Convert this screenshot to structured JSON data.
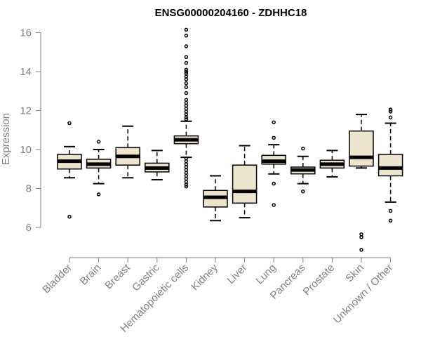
{
  "chart_data": {
    "type": "boxplot",
    "title": "ENSG00000204160 - ZDHHC18",
    "xlabel": "",
    "ylabel": "Expression",
    "ylim": [
      4.6,
      16.5
    ],
    "yticks": [
      6,
      8,
      10,
      12,
      14,
      16
    ],
    "ytick_labels": [
      "6",
      "8",
      "10",
      "12",
      "14",
      "16"
    ],
    "grid": false,
    "box_fill": "#ede4cd",
    "box_stroke": "#000000",
    "axis_color": "#808080",
    "categories": [
      "Bladder",
      "Brain",
      "Breast",
      "Gastric",
      "Hematopoietic cells",
      "Kidney",
      "Liver",
      "Lung",
      "Pancreas",
      "Prostate",
      "Skin",
      "Unknown / Other"
    ],
    "boxes": [
      {
        "name": "Bladder",
        "whisker_low": 8.55,
        "q1": 9.0,
        "median": 9.4,
        "q3": 9.75,
        "whisker_high": 10.15,
        "outliers": [
          11.35,
          6.55
        ]
      },
      {
        "name": "Brain",
        "whisker_low": 8.25,
        "q1": 9.05,
        "median": 9.25,
        "q3": 9.5,
        "whisker_high": 10.0,
        "outliers": [
          10.4,
          7.7
        ]
      },
      {
        "name": "Breast",
        "whisker_low": 8.55,
        "q1": 9.2,
        "median": 9.65,
        "q3": 10.1,
        "whisker_high": 11.2,
        "outliers": []
      },
      {
        "name": "Gastric",
        "whisker_low": 8.45,
        "q1": 8.85,
        "median": 9.05,
        "q3": 9.3,
        "whisker_high": 9.95,
        "outliers": []
      },
      {
        "name": "Hematopoietic cells",
        "whisker_low": 9.6,
        "q1": 10.3,
        "median": 10.5,
        "q3": 10.7,
        "whisker_high": 11.45,
        "outliers": [
          16.15,
          15.85,
          15.3,
          14.75,
          14.45,
          14.1,
          14.0,
          13.9,
          13.75,
          13.6,
          13.4,
          13.2,
          12.9,
          12.55,
          12.4,
          12.25,
          12.1,
          11.95,
          11.8,
          11.65,
          11.55,
          9.55,
          9.4,
          9.25,
          9.1,
          8.95,
          8.8,
          8.65,
          8.5,
          8.35,
          8.2,
          8.1
        ]
      },
      {
        "name": "Kidney",
        "whisker_low": 6.35,
        "q1": 7.05,
        "median": 7.55,
        "q3": 7.9,
        "whisker_high": 8.65,
        "outliers": []
      },
      {
        "name": "Liver",
        "whisker_low": 6.5,
        "q1": 7.25,
        "median": 7.85,
        "q3": 9.2,
        "whisker_high": 10.2,
        "outliers": []
      },
      {
        "name": "Lung",
        "whisker_low": 8.75,
        "q1": 9.25,
        "median": 9.4,
        "q3": 9.7,
        "whisker_high": 10.25,
        "outliers": [
          11.4,
          10.6,
          8.25,
          7.15
        ]
      },
      {
        "name": "Pancreas",
        "whisker_low": 8.25,
        "q1": 8.75,
        "median": 8.95,
        "q3": 9.1,
        "whisker_high": 9.65,
        "outliers": [
          10.05,
          7.85
        ]
      },
      {
        "name": "Prostate",
        "whisker_low": 8.6,
        "q1": 9.05,
        "median": 9.25,
        "q3": 9.45,
        "whisker_high": 9.95,
        "outliers": []
      },
      {
        "name": "Skin",
        "whisker_low": 9.05,
        "q1": 9.15,
        "median": 9.6,
        "q3": 10.95,
        "whisker_high": 11.8,
        "outliers": [
          5.65,
          5.5,
          4.85
        ]
      },
      {
        "name": "Unknown / Other",
        "whisker_low": 7.3,
        "q1": 8.65,
        "median": 9.05,
        "q3": 9.75,
        "whisker_high": 11.35,
        "outliers": [
          12.05,
          11.95,
          11.65,
          6.85,
          6.35
        ]
      }
    ]
  }
}
